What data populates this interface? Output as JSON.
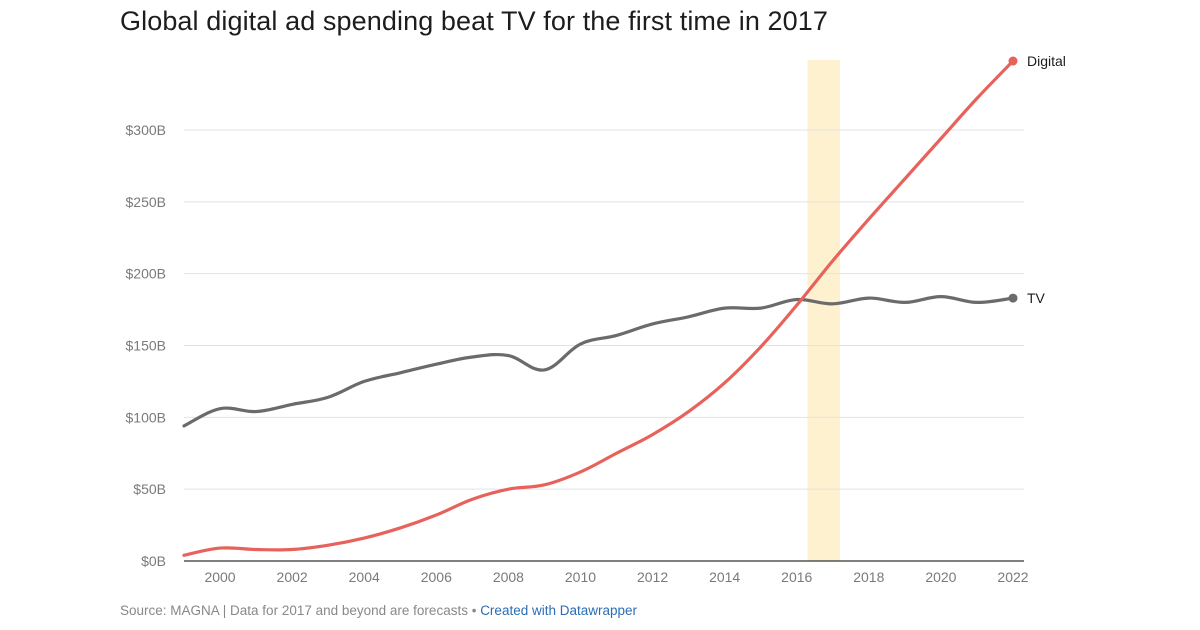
{
  "title": "Global digital ad spending beat TV for the first time in 2017",
  "footer": {
    "source_text": "Source: MAGNA | Data for 2017 and beyond are forecasts",
    "separator": " • ",
    "credit_text": "Created with Datawrapper"
  },
  "chart_data": {
    "type": "line",
    "title": "Global digital ad spending beat TV for the first time in 2017",
    "xlabel": "",
    "ylabel": "",
    "xlim": [
      1999,
      2022
    ],
    "ylim": [
      0,
      350
    ],
    "x_ticks": [
      2000,
      2002,
      2004,
      2006,
      2008,
      2010,
      2012,
      2014,
      2016,
      2018,
      2020,
      2022
    ],
    "x_tick_labels": [
      "2000",
      "2002",
      "2004",
      "2006",
      "2008",
      "2010",
      "2012",
      "2014",
      "2016",
      "2018",
      "2020",
      "2022"
    ],
    "y_ticks": [
      0,
      50,
      100,
      150,
      200,
      250,
      300
    ],
    "y_tick_labels": [
      "$0B",
      "$50B",
      "$100B",
      "$150B",
      "$200B",
      "$250B",
      "$300B"
    ],
    "grid": true,
    "highlight_band": {
      "x": [
        2016.3,
        2017.2
      ],
      "color": "#fdf1cf"
    },
    "x": [
      1999,
      2000,
      2001,
      2002,
      2003,
      2004,
      2005,
      2006,
      2007,
      2008,
      2009,
      2010,
      2011,
      2012,
      2013,
      2014,
      2015,
      2016,
      2017,
      2018,
      2019,
      2020,
      2021,
      2022
    ],
    "series": [
      {
        "name": "TV",
        "color": "#6b6b6b",
        "values": [
          94,
          106,
          104,
          109,
          114,
          125,
          131,
          137,
          142,
          143,
          133,
          151,
          157,
          165,
          170,
          176,
          176,
          182,
          179,
          183,
          180,
          184,
          180,
          183
        ]
      },
      {
        "name": "Digital",
        "color": "#e8625c",
        "values": [
          4,
          9,
          8,
          8,
          11,
          16,
          23,
          32,
          43,
          50,
          53,
          62,
          75,
          88,
          104,
          124,
          149,
          178,
          209,
          238,
          266,
          294,
          322,
          348
        ]
      }
    ]
  }
}
